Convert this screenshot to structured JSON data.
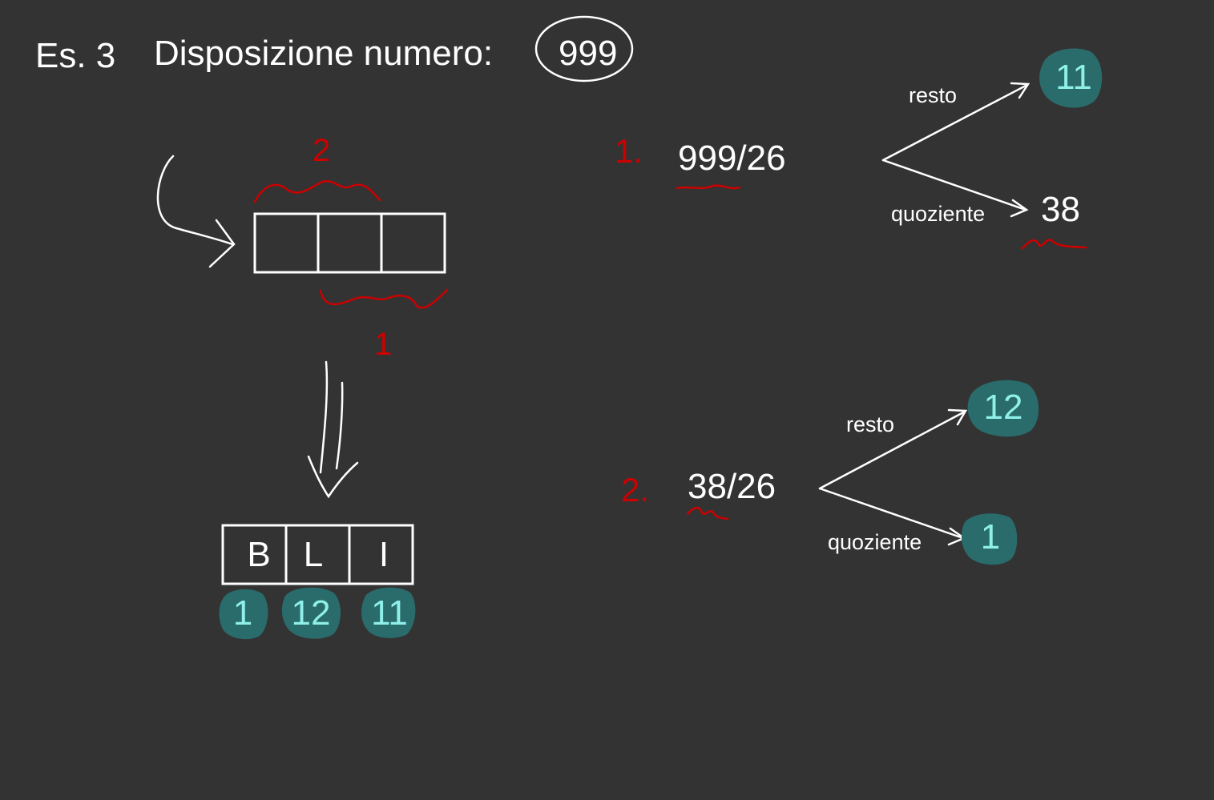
{
  "title": {
    "exercise": "Es. 3",
    "heading": "Disposizione numero:",
    "number": "999"
  },
  "left": {
    "brace_top_label": "2",
    "brace_bottom_label": "1",
    "letters": [
      "B",
      "L",
      "I"
    ],
    "indices": [
      "1",
      "12",
      "11"
    ]
  },
  "step1": {
    "index": "1.",
    "division": "999/26",
    "resto_label": "resto",
    "quoziente_label": "quoziente",
    "resto_value": "11",
    "quoziente_value": "38"
  },
  "step2": {
    "index": "2.",
    "division": "38/26",
    "resto_label": "resto",
    "quoziente_label": "quoziente",
    "resto_value": "12",
    "quoziente_value": "1"
  },
  "colors": {
    "background": "#333333",
    "ink": "#ffffff",
    "red_ink": "#cc0000",
    "blob": "#2a6b6b",
    "blob_text": "#8ff0ea"
  }
}
